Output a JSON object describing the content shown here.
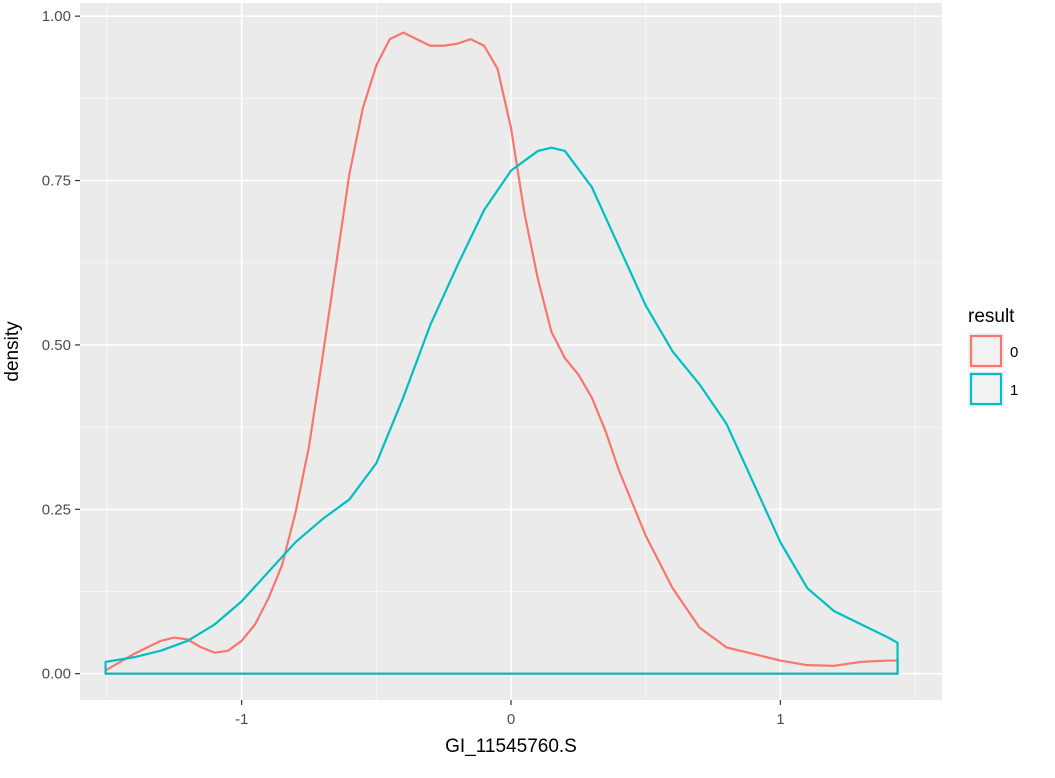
{
  "chart_data": {
    "type": "area",
    "title": "",
    "xlabel": "GI_11545760.S",
    "ylabel": "density",
    "xlim": [
      -1.6,
      1.6
    ],
    "ylim": [
      -0.04,
      1.02
    ],
    "x_ticks": [
      -1,
      0,
      1
    ],
    "x_tick_labels": [
      "-1",
      "0",
      "1"
    ],
    "y_ticks": [
      0,
      0.25,
      0.5,
      0.75,
      1
    ],
    "y_tick_labels": [
      "0.00",
      "0.25",
      "0.50",
      "0.75",
      "1.00"
    ],
    "grid": true,
    "background": "#EBEBEB",
    "legend": {
      "title": "result",
      "placement": "right",
      "entries": [
        {
          "label": "0",
          "color": "#F8766D"
        },
        {
          "label": "1",
          "color": "#00BFC4"
        }
      ]
    },
    "series": [
      {
        "name": "0",
        "color": "#F8766D",
        "x": [
          -1.505,
          -1.4,
          -1.3,
          -1.25,
          -1.2,
          -1.15,
          -1.1,
          -1.05,
          -1.0,
          -0.95,
          -0.9,
          -0.85,
          -0.8,
          -0.75,
          -0.7,
          -0.65,
          -0.6,
          -0.55,
          -0.5,
          -0.45,
          -0.4,
          -0.35,
          -0.3,
          -0.25,
          -0.2,
          -0.15,
          -0.1,
          -0.05,
          0.0,
          0.05,
          0.1,
          0.15,
          0.2,
          0.25,
          0.3,
          0.35,
          0.4,
          0.45,
          0.5,
          0.6,
          0.7,
          0.8,
          0.9,
          1.0,
          1.1,
          1.2,
          1.25,
          1.3,
          1.4,
          1.435
        ],
        "y": [
          0.005,
          0.03,
          0.05,
          0.055,
          0.052,
          0.04,
          0.032,
          0.035,
          0.05,
          0.075,
          0.115,
          0.165,
          0.245,
          0.345,
          0.48,
          0.62,
          0.76,
          0.86,
          0.925,
          0.965,
          0.975,
          0.965,
          0.955,
          0.955,
          0.958,
          0.965,
          0.955,
          0.92,
          0.83,
          0.7,
          0.6,
          0.52,
          0.48,
          0.455,
          0.42,
          0.37,
          0.31,
          0.26,
          0.21,
          0.13,
          0.07,
          0.04,
          0.03,
          0.02,
          0.013,
          0.012,
          0.015,
          0.018,
          0.02,
          0.02
        ]
      },
      {
        "name": "1",
        "color": "#00BFC4",
        "x": [
          -1.505,
          -1.4,
          -1.3,
          -1.2,
          -1.1,
          -1.0,
          -0.9,
          -0.8,
          -0.7,
          -0.6,
          -0.5,
          -0.4,
          -0.3,
          -0.2,
          -0.1,
          0.0,
          0.1,
          0.15,
          0.2,
          0.3,
          0.4,
          0.5,
          0.6,
          0.7,
          0.8,
          0.9,
          1.0,
          1.1,
          1.2,
          1.3,
          1.4,
          1.435
        ],
        "y": [
          0.018,
          0.025,
          0.035,
          0.05,
          0.075,
          0.11,
          0.155,
          0.2,
          0.235,
          0.265,
          0.32,
          0.42,
          0.53,
          0.62,
          0.705,
          0.765,
          0.795,
          0.8,
          0.795,
          0.74,
          0.65,
          0.56,
          0.49,
          0.44,
          0.38,
          0.29,
          0.2,
          0.13,
          0.095,
          0.075,
          0.055,
          0.047
        ]
      }
    ]
  }
}
